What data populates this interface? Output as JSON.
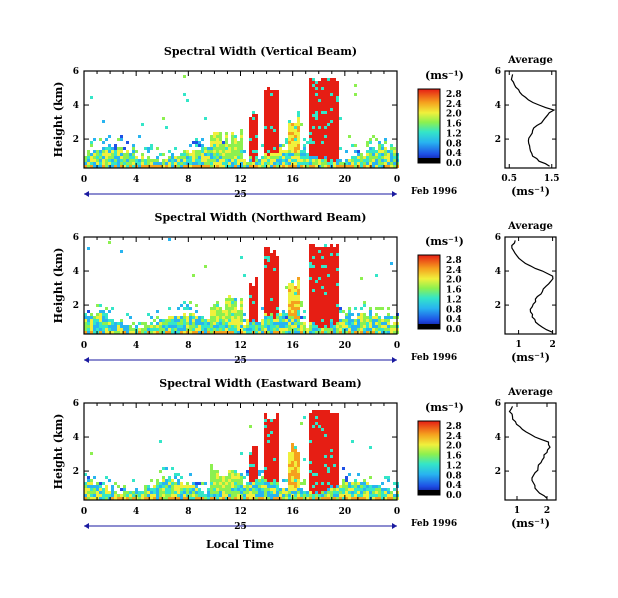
{
  "figure": {
    "x_title": "Local Time",
    "date_label": "Feb 1996",
    "day_label": "25"
  },
  "chart_data": [
    {
      "type": "heatmap",
      "title": "Spectral Width (Vertical Beam)",
      "ylabel": "Height (km)",
      "xlabel": "Local Time",
      "x_ticks": [
        "0",
        "4",
        "8",
        "12",
        "16",
        "20",
        "0"
      ],
      "xlim": [
        0,
        24
      ],
      "y_ticks": [
        "2",
        "4",
        "6"
      ],
      "ylim": [
        0.3,
        6.0
      ],
      "colorbar": {
        "unit": "(ms⁻¹)",
        "ticks": [
          "0.0",
          "0.4",
          "0.8",
          "1.2",
          "1.6",
          "2.0",
          "2.4",
          "2.8"
        ],
        "range": [
          0.0,
          3.0
        ]
      },
      "avg_profile": {
        "title": "Average",
        "xlabel": "(ms⁻¹)",
        "x_ticks": [
          "0.5",
          "1.5"
        ],
        "xlim": [
          0.4,
          1.6
        ],
        "y_ticks": [
          "2",
          "4",
          "6"
        ],
        "ylim": [
          0.3,
          6.0
        ],
        "height": [
          0.4,
          0.7,
          1.0,
          1.3,
          1.6,
          1.9,
          2.2,
          2.5,
          2.8,
          3.1,
          3.4,
          3.7,
          4.0,
          4.3,
          4.6,
          4.9,
          5.2,
          5.5,
          5.8
        ],
        "value": [
          1.45,
          1.2,
          1.05,
          1.0,
          0.98,
          0.95,
          1.0,
          1.05,
          1.15,
          1.3,
          1.4,
          1.55,
          1.2,
          0.95,
          0.8,
          0.72,
          0.62,
          0.55,
          0.58
        ]
      }
    },
    {
      "type": "heatmap",
      "title": "Spectral Width (Northward Beam)",
      "ylabel": "Height (km)",
      "xlabel": "Local Time",
      "x_ticks": [
        "0",
        "4",
        "8",
        "12",
        "16",
        "20",
        "0"
      ],
      "xlim": [
        0,
        24
      ],
      "y_ticks": [
        "2",
        "4",
        "6"
      ],
      "ylim": [
        0.3,
        6.0
      ],
      "colorbar": {
        "unit": "(ms⁻¹)",
        "ticks": [
          "0.0",
          "0.4",
          "0.8",
          "1.2",
          "1.6",
          "2.0",
          "2.4",
          "2.8"
        ],
        "range": [
          0.0,
          3.0
        ]
      },
      "avg_profile": {
        "title": "Average",
        "xlabel": "(ms⁻¹)",
        "x_ticks": [
          "1",
          "2"
        ],
        "xlim": [
          0.6,
          2.1
        ],
        "y_ticks": [
          "2",
          "4",
          "6"
        ],
        "ylim": [
          0.3,
          6.0
        ],
        "height": [
          0.4,
          0.7,
          1.0,
          1.3,
          1.6,
          1.9,
          2.2,
          2.5,
          2.8,
          3.1,
          3.4,
          3.7,
          4.0,
          4.3,
          4.6,
          4.9,
          5.2,
          5.5,
          5.8
        ],
        "value": [
          2.0,
          1.7,
          1.5,
          1.4,
          1.35,
          1.4,
          1.5,
          1.55,
          1.7,
          1.8,
          1.95,
          2.0,
          1.7,
          1.35,
          1.1,
          0.95,
          0.85,
          0.8,
          0.9
        ]
      }
    },
    {
      "type": "heatmap",
      "title": "Spectral Width (Eastward Beam)",
      "ylabel": "Height (km)",
      "xlabel": "Local Time",
      "x_ticks": [
        "0",
        "4",
        "8",
        "12",
        "16",
        "20",
        "0"
      ],
      "xlim": [
        0,
        24
      ],
      "y_ticks": [
        "2",
        "4",
        "6"
      ],
      "ylim": [
        0.3,
        6.0
      ],
      "colorbar": {
        "unit": "(ms⁻¹)",
        "ticks": [
          "0.0",
          "0.4",
          "0.8",
          "1.2",
          "1.6",
          "2.0",
          "2.4",
          "2.8"
        ],
        "range": [
          0.0,
          3.0
        ]
      },
      "avg_profile": {
        "title": "Average",
        "xlabel": "(ms⁻¹)",
        "x_ticks": [
          "1",
          "2"
        ],
        "xlim": [
          0.6,
          2.3
        ],
        "y_ticks": [
          "2",
          "4",
          "6"
        ],
        "ylim": [
          0.3,
          6.0
        ],
        "height": [
          0.4,
          0.7,
          1.0,
          1.3,
          1.6,
          1.9,
          2.2,
          2.5,
          2.8,
          3.1,
          3.4,
          3.7,
          4.0,
          4.3,
          4.6,
          4.9,
          5.2,
          5.5,
          5.8
        ],
        "value": [
          2.0,
          1.75,
          1.6,
          1.55,
          1.5,
          1.6,
          1.7,
          1.8,
          1.9,
          2.0,
          2.1,
          2.05,
          1.6,
          1.3,
          1.1,
          0.95,
          0.85,
          0.75,
          0.85
        ]
      }
    }
  ]
}
